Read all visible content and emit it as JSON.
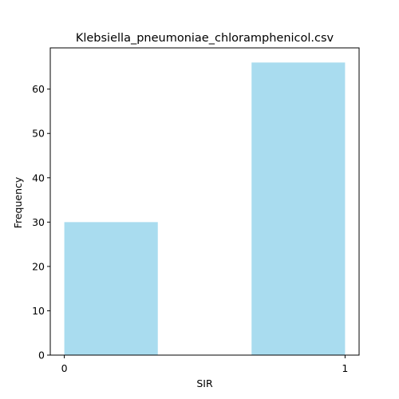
{
  "chart_data": {
    "type": "bar",
    "title": "Klebsiella_pneumoniae_chloramphenicol.csv",
    "xlabel": "SIR",
    "ylabel": "Frequency",
    "bins": [
      {
        "x_start": 0.0,
        "x_end": 0.333,
        "value": 30
      },
      {
        "x_start": 0.667,
        "x_end": 1.0,
        "value": 66
      }
    ],
    "xlim": [
      -0.05,
      1.05
    ],
    "ylim": [
      0,
      69.3
    ],
    "x_ticks": [
      0,
      1
    ],
    "y_ticks": [
      0,
      10,
      20,
      30,
      40,
      50,
      60
    ],
    "bar_color": "#a9dcef",
    "grid": false,
    "legend": "none"
  }
}
